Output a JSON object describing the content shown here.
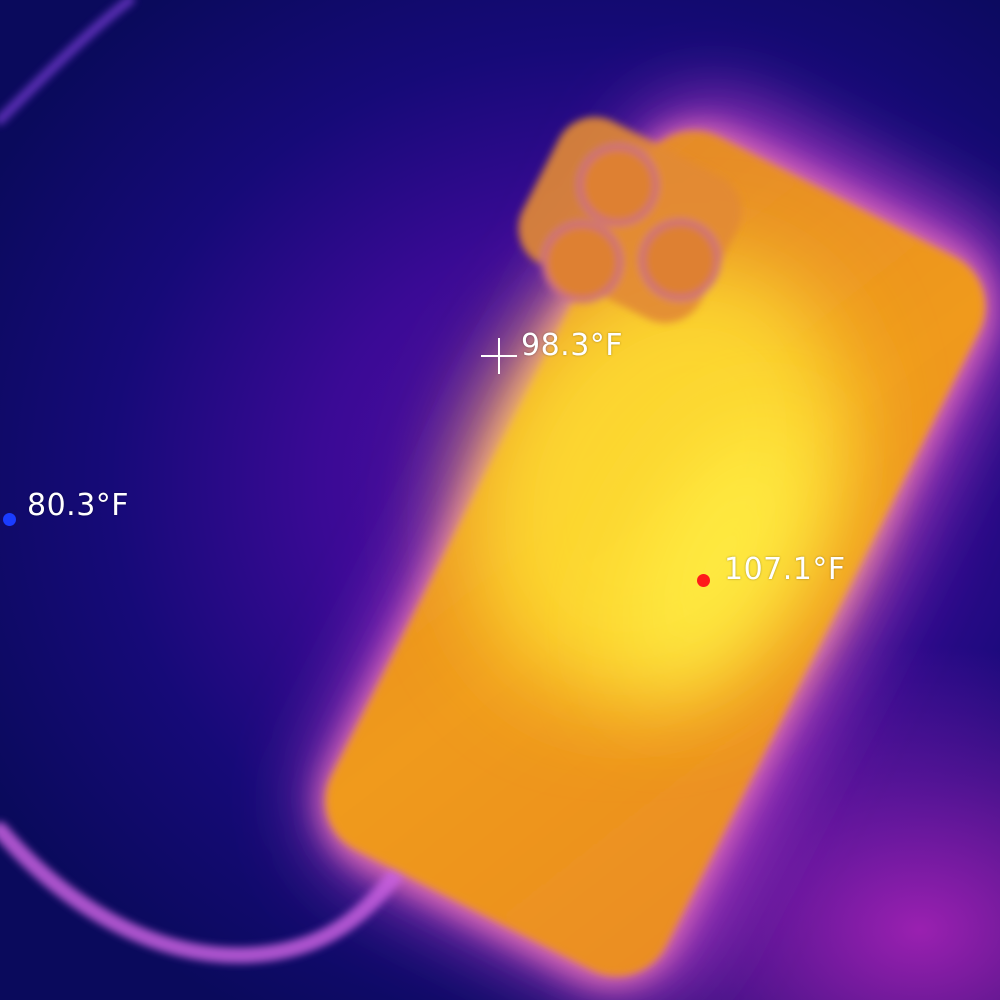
{
  "measurements": {
    "center": {
      "label": "98.3°F",
      "marker": "crosshair-icon",
      "color": "#ffffff"
    },
    "min": {
      "label": "80.3°F",
      "marker": "dot-icon",
      "color": "#1a3cff"
    },
    "max": {
      "label": "107.1°F",
      "marker": "dot-icon",
      "color": "#ff1a1a"
    }
  },
  "palette": {
    "cold": "#0a0a5c",
    "cool": "#3a0a95",
    "warm": "#c03cc8",
    "hot": "#f2a020",
    "hottest": "#ffe930"
  }
}
